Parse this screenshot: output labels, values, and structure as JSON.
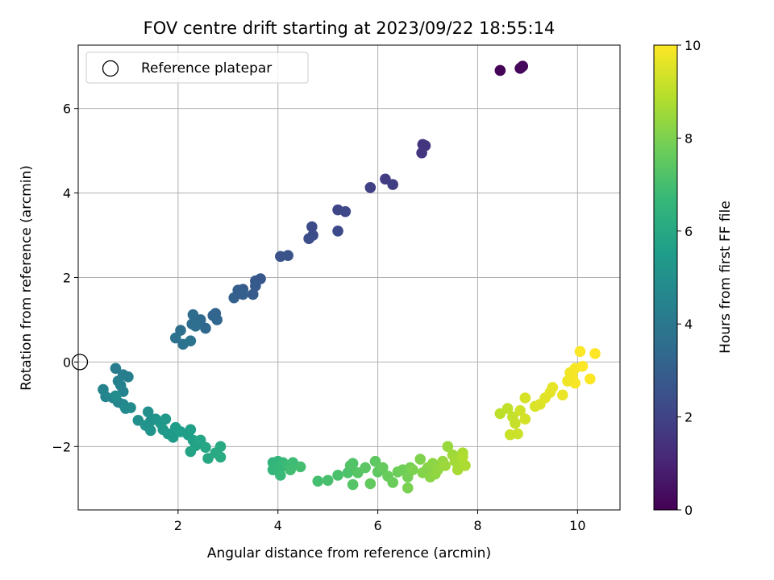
{
  "chart_data": {
    "type": "scatter",
    "title": "FOV centre drift starting at 2023/09/22 18:55:14",
    "xlabel": "Angular distance from reference (arcmin)",
    "ylabel": "Rotation from reference (arcmin)",
    "xlim": [
      0,
      10.85
    ],
    "ylim": [
      -3.5,
      7.5
    ],
    "xticks": [
      2,
      4,
      6,
      8,
      10
    ],
    "yticks": [
      -2,
      0,
      2,
      4,
      6
    ],
    "grid": true,
    "legend": {
      "position": "upper-left",
      "entries": [
        {
          "label": "Reference platepar",
          "marker": "open-circle",
          "x": 0.0,
          "y": 0.0
        }
      ]
    },
    "colorbar": {
      "label": "Hours from first FF file",
      "colormap": "viridis",
      "range": [
        0,
        10
      ],
      "ticks": [
        0,
        2,
        4,
        6,
        8,
        10
      ],
      "stops": [
        "#440154",
        "#482878",
        "#3e4a89",
        "#31688e",
        "#26828e",
        "#1f9e89",
        "#35b779",
        "#6ece58",
        "#b5de2b",
        "#fde725"
      ]
    },
    "points": [
      [
        8.45,
        6.9,
        0.05
      ],
      [
        8.85,
        6.95,
        0.1
      ],
      [
        8.9,
        7.0,
        0.15
      ],
      [
        8.87,
        6.97,
        0.2
      ],
      [
        6.9,
        5.15,
        1.5
      ],
      [
        6.95,
        5.12,
        1.55
      ],
      [
        6.88,
        4.95,
        1.6
      ],
      [
        6.15,
        4.33,
        1.8
      ],
      [
        6.3,
        4.2,
        1.85
      ],
      [
        5.85,
        4.13,
        1.9
      ],
      [
        5.2,
        3.6,
        2.1
      ],
      [
        5.35,
        3.56,
        2.15
      ],
      [
        5.2,
        3.1,
        2.2
      ],
      [
        4.68,
        3.2,
        2.3
      ],
      [
        4.7,
        3.0,
        2.35
      ],
      [
        4.62,
        2.92,
        2.4
      ],
      [
        4.05,
        2.5,
        2.5
      ],
      [
        4.2,
        2.52,
        2.55
      ],
      [
        3.65,
        1.97,
        2.7
      ],
      [
        3.55,
        1.92,
        2.75
      ],
      [
        3.55,
        1.8,
        2.8
      ],
      [
        3.5,
        1.6,
        2.85
      ],
      [
        3.3,
        1.72,
        2.9
      ],
      [
        3.2,
        1.7,
        2.95
      ],
      [
        3.3,
        1.6,
        3.0
      ],
      [
        3.12,
        1.52,
        3.05
      ],
      [
        2.75,
        1.15,
        3.2
      ],
      [
        2.7,
        1.1,
        3.25
      ],
      [
        2.78,
        1.0,
        3.3
      ],
      [
        2.55,
        0.8,
        3.35
      ],
      [
        2.45,
        1.0,
        3.4
      ],
      [
        2.4,
        0.95,
        3.45
      ],
      [
        2.3,
        1.12,
        3.5
      ],
      [
        2.28,
        0.9,
        3.55
      ],
      [
        2.35,
        0.85,
        3.6
      ],
      [
        2.05,
        0.75,
        3.65
      ],
      [
        1.95,
        0.57,
        3.7
      ],
      [
        2.1,
        0.42,
        3.75
      ],
      [
        2.25,
        0.5,
        3.8
      ],
      [
        0.75,
        -0.15,
        4.2
      ],
      [
        0.9,
        -0.3,
        4.25
      ],
      [
        1.0,
        -0.35,
        4.3
      ],
      [
        0.8,
        -0.45,
        4.35
      ],
      [
        0.85,
        -0.55,
        4.4
      ],
      [
        0.9,
        -0.7,
        4.45
      ],
      [
        0.5,
        -0.65,
        4.5
      ],
      [
        0.55,
        -0.82,
        4.55
      ],
      [
        0.7,
        -0.85,
        4.6
      ],
      [
        0.8,
        -0.95,
        4.65
      ],
      [
        0.9,
        -1.0,
        4.7
      ],
      [
        0.95,
        -1.1,
        4.75
      ],
      [
        1.05,
        -1.08,
        4.8
      ],
      [
        0.75,
        -0.8,
        4.85
      ],
      [
        1.2,
        -1.38,
        4.95
      ],
      [
        1.4,
        -1.18,
        5.0
      ],
      [
        1.45,
        -1.4,
        5.05
      ],
      [
        1.55,
        -1.35,
        5.1
      ],
      [
        1.35,
        -1.5,
        5.15
      ],
      [
        1.45,
        -1.62,
        5.2
      ],
      [
        1.65,
        -1.45,
        5.25
      ],
      [
        1.75,
        -1.35,
        5.3
      ],
      [
        1.7,
        -1.6,
        5.35
      ],
      [
        1.8,
        -1.7,
        5.4
      ],
      [
        1.9,
        -1.78,
        5.45
      ],
      [
        1.95,
        -1.55,
        5.5
      ],
      [
        2.05,
        -1.65,
        5.55
      ],
      [
        2.2,
        -1.72,
        5.6
      ],
      [
        2.25,
        -1.6,
        5.65
      ],
      [
        2.3,
        -1.85,
        5.7
      ],
      [
        2.35,
        -1.98,
        5.75
      ],
      [
        2.25,
        -2.12,
        5.8
      ],
      [
        2.45,
        -1.85,
        5.85
      ],
      [
        2.55,
        -2.02,
        5.9
      ],
      [
        2.6,
        -2.28,
        5.95
      ],
      [
        2.75,
        -2.15,
        6.0
      ],
      [
        2.85,
        -2.0,
        6.05
      ],
      [
        2.85,
        -2.25,
        6.1
      ],
      [
        3.9,
        -2.38,
        6.5
      ],
      [
        4.0,
        -2.35,
        6.55
      ],
      [
        3.9,
        -2.55,
        6.6
      ],
      [
        4.05,
        -2.5,
        6.65
      ],
      [
        4.1,
        -2.38,
        6.7
      ],
      [
        4.05,
        -2.68,
        6.75
      ],
      [
        4.2,
        -2.45,
        6.8
      ],
      [
        4.3,
        -2.38,
        6.85
      ],
      [
        4.25,
        -2.55,
        6.9
      ],
      [
        4.45,
        -2.48,
        6.95
      ],
      [
        4.8,
        -2.82,
        7.0
      ],
      [
        5.0,
        -2.8,
        7.05
      ],
      [
        5.2,
        -2.68,
        7.1
      ],
      [
        5.4,
        -2.62,
        7.15
      ],
      [
        5.5,
        -2.4,
        7.2
      ],
      [
        5.45,
        -2.45,
        7.25
      ],
      [
        5.5,
        -2.9,
        7.3
      ],
      [
        5.6,
        -2.62,
        7.35
      ],
      [
        5.75,
        -2.5,
        7.4
      ],
      [
        5.95,
        -2.35,
        7.45
      ],
      [
        6.0,
        -2.6,
        7.5
      ],
      [
        5.85,
        -2.88,
        7.55
      ],
      [
        6.1,
        -2.5,
        7.6
      ],
      [
        6.2,
        -2.7,
        7.65
      ],
      [
        6.3,
        -2.85,
        7.7
      ],
      [
        6.4,
        -2.6,
        7.75
      ],
      [
        6.5,
        -2.55,
        7.8
      ],
      [
        6.6,
        -2.72,
        7.85
      ],
      [
        6.65,
        -2.5,
        7.9
      ],
      [
        6.6,
        -2.98,
        7.95
      ],
      [
        6.7,
        -2.55,
        8.0
      ],
      [
        6.85,
        -2.3,
        8.05
      ],
      [
        6.9,
        -2.62,
        8.1
      ],
      [
        7.0,
        -2.5,
        8.15
      ],
      [
        7.05,
        -2.72,
        8.2
      ],
      [
        7.1,
        -2.4,
        8.25
      ],
      [
        7.15,
        -2.65,
        8.3
      ],
      [
        7.2,
        -2.55,
        8.35
      ],
      [
        7.3,
        -2.35,
        8.4
      ],
      [
        7.4,
        -2.0,
        8.45
      ],
      [
        7.35,
        -2.45,
        8.5
      ],
      [
        7.5,
        -2.2,
        8.55
      ],
      [
        7.55,
        -2.35,
        8.6
      ],
      [
        7.6,
        -2.55,
        8.65
      ],
      [
        7.7,
        -2.15,
        8.7
      ],
      [
        7.75,
        -2.45,
        8.75
      ],
      [
        7.7,
        -2.25,
        8.8
      ],
      [
        8.45,
        -1.22,
        9.0
      ],
      [
        8.6,
        -1.1,
        9.05
      ],
      [
        8.7,
        -1.3,
        9.1
      ],
      [
        8.75,
        -1.45,
        9.15
      ],
      [
        8.65,
        -1.72,
        9.2
      ],
      [
        8.8,
        -1.7,
        9.25
      ],
      [
        8.85,
        -1.15,
        9.3
      ],
      [
        8.95,
        -1.35,
        9.35
      ],
      [
        8.95,
        -0.85,
        9.4
      ],
      [
        9.15,
        -1.05,
        9.45
      ],
      [
        9.25,
        -1.0,
        9.5
      ],
      [
        9.35,
        -0.85,
        9.55
      ],
      [
        9.45,
        -0.72,
        9.6
      ],
      [
        9.5,
        -0.6,
        9.65
      ],
      [
        9.7,
        -0.78,
        9.7
      ],
      [
        9.8,
        -0.45,
        9.75
      ],
      [
        9.85,
        -0.25,
        9.8
      ],
      [
        9.9,
        -0.35,
        9.85
      ],
      [
        9.95,
        -0.15,
        9.9
      ],
      [
        10.05,
        0.25,
        9.95
      ],
      [
        10.1,
        -0.1,
        9.97
      ],
      [
        10.25,
        -0.4,
        9.98
      ],
      [
        10.35,
        0.2,
        10.0
      ],
      [
        9.95,
        -0.5,
        9.9
      ]
    ]
  }
}
